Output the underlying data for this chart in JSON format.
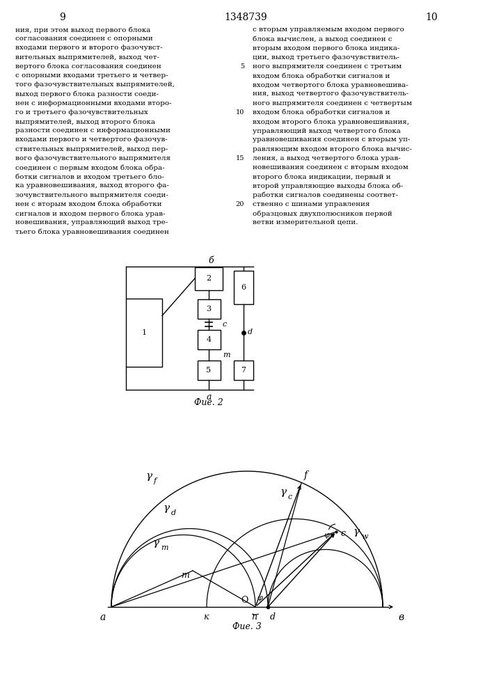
{
  "page_header": "1348739",
  "page_left": "9",
  "page_right": "10",
  "text_left": "ния, при этом выход первого блока\nсогласования соединен с опорными\nвходами первого и второго фазочувст-\nвительных выпрямителей, выход чет-\nвертого блока согласования соединен\nс опорными входами третьего и четвер-\nтого фазочувствительных выпрямителей,\nвыход первого блока разности соеди-\nнен с информационными входами второ-\nго и третьего фазочувствительных\nвыпрямителей, выход второго блока\nразности соединен с информационными\nвходами первого и четвертого фазочув-\nствительных выпрямителей, выход пер-\nвого фазочувствительного выпрямителя\nсоединен с первым входом блока обра-\nботки сигналов и входом третьего бло-\nка уравновешивания, выход второго фа-\nзочувствительного выпрямителя соеди-\nнен с вторым входом блока обработки\nсигналов и входом первого блока урав-\nновешивания, управляющий выход тре-\nтьего блока уравновешивания соединен",
  "text_right": "с вторым управляемым входом первого\nблока вычислен, а выход соединен с\nвторым входом первого блока индика-\nции, выход третьего фазочувствитель-\nного выпрямителя соединен с третьим\nвходом блока обработки сигналов и\nвходом четвертого блока уравновешива-\nния, выход четвертого фазочувствитель-\nного выпрямителя соединен с четвертым\nвходом блока обработки сигналов и\nвходом второго блока уравновешивания,\nуправляющий выход четвертого блока\nуравновешивания соединен с вторым уп-\nравляющим входом второго блока вычис-\nления, а выход четвертого блока урав-\nновешивания соединен с вторым входом\nвторого блока индикации, первый и\nвторой управляющие выходы блока об-\nработки сигналов соединены соответ-\nственно с шинами управления\nобразцовых двухполюсников первой\nветви измерительной цепи.",
  "fig2_label": "Фие. 2",
  "fig3_label": "Фие. 3"
}
